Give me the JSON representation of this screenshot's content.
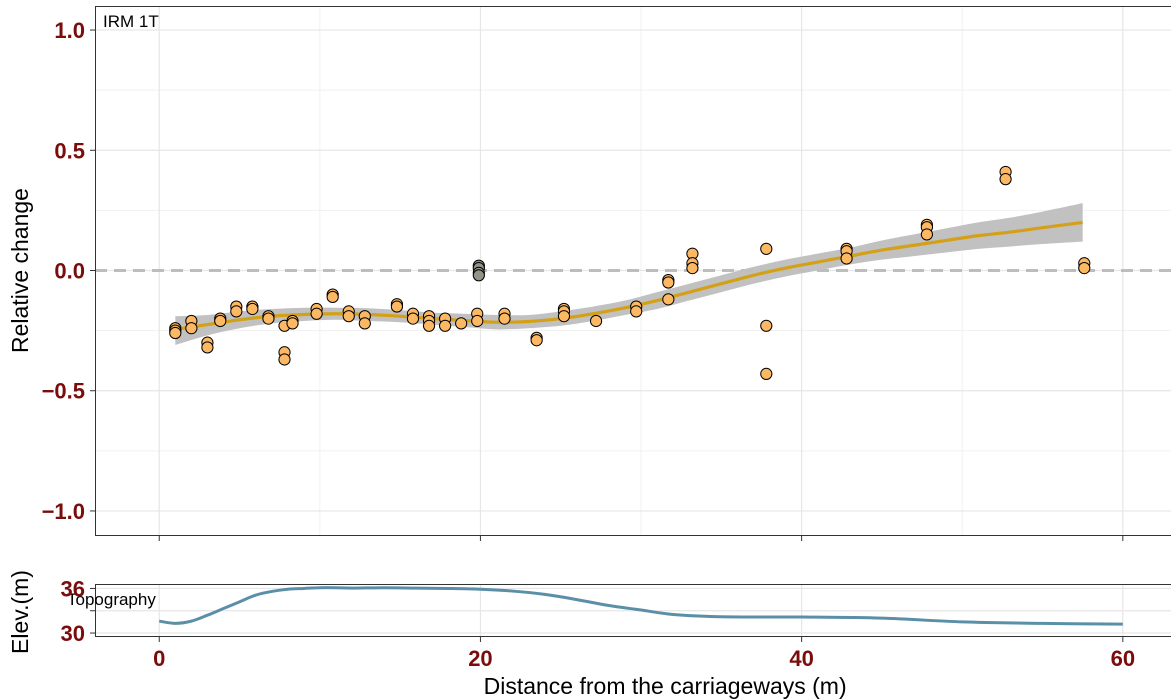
{
  "chart_data": [
    {
      "type": "scatter",
      "panel_label": "IRM 1T",
      "xlabel": "Distance from the carriageways (m)",
      "ylabel": "Relative change",
      "xlim": [
        -4,
        63
      ],
      "ylim": [
        -1.1,
        1.1
      ],
      "x_ticks": [
        0,
        20,
        40,
        60
      ],
      "x_tick_labels": [
        "0",
        "20",
        "40",
        "60"
      ],
      "y_ticks": [
        -1.0,
        -0.5,
        0.0,
        0.5,
        1.0
      ],
      "y_tick_labels": [
        "−1.0",
        "−0.5",
        "0.0",
        "0.5",
        "1.0"
      ],
      "grid": true,
      "reference_line": {
        "y": 0.0,
        "style": "dashed",
        "color": "#bdbdbd"
      },
      "colors": {
        "points": "#FDB863",
        "points_outlier": "#8f9688",
        "smooth": "#D4A017",
        "band": "#bebebe",
        "tick_labels": "#7a0c0c"
      },
      "points": [
        {
          "x": 1.0,
          "y": -0.24
        },
        {
          "x": 1.0,
          "y": -0.25
        },
        {
          "x": 1.0,
          "y": -0.26
        },
        {
          "x": 2.0,
          "y": -0.21
        },
        {
          "x": 2.0,
          "y": -0.24
        },
        {
          "x": 3.0,
          "y": -0.3
        },
        {
          "x": 3.0,
          "y": -0.32
        },
        {
          "x": 3.8,
          "y": -0.2
        },
        {
          "x": 3.8,
          "y": -0.21
        },
        {
          "x": 4.8,
          "y": -0.15
        },
        {
          "x": 4.8,
          "y": -0.17
        },
        {
          "x": 5.8,
          "y": -0.15
        },
        {
          "x": 5.8,
          "y": -0.16
        },
        {
          "x": 6.8,
          "y": -0.19
        },
        {
          "x": 6.8,
          "y": -0.2
        },
        {
          "x": 7.8,
          "y": -0.23
        },
        {
          "x": 7.8,
          "y": -0.34
        },
        {
          "x": 7.8,
          "y": -0.37
        },
        {
          "x": 8.3,
          "y": -0.21
        },
        {
          "x": 8.3,
          "y": -0.22
        },
        {
          "x": 9.8,
          "y": -0.16
        },
        {
          "x": 9.8,
          "y": -0.18
        },
        {
          "x": 10.8,
          "y": -0.1
        },
        {
          "x": 10.8,
          "y": -0.11
        },
        {
          "x": 11.8,
          "y": -0.17
        },
        {
          "x": 11.8,
          "y": -0.19
        },
        {
          "x": 12.8,
          "y": -0.19
        },
        {
          "x": 12.8,
          "y": -0.22
        },
        {
          "x": 14.8,
          "y": -0.14
        },
        {
          "x": 14.8,
          "y": -0.15
        },
        {
          "x": 15.8,
          "y": -0.18
        },
        {
          "x": 15.8,
          "y": -0.2
        },
        {
          "x": 16.8,
          "y": -0.19
        },
        {
          "x": 16.8,
          "y": -0.21
        },
        {
          "x": 16.8,
          "y": -0.23
        },
        {
          "x": 17.8,
          "y": -0.2
        },
        {
          "x": 17.8,
          "y": -0.23
        },
        {
          "x": 18.8,
          "y": -0.22
        },
        {
          "x": 19.8,
          "y": -0.18
        },
        {
          "x": 19.8,
          "y": -0.21
        },
        {
          "x": 21.5,
          "y": -0.18
        },
        {
          "x": 21.5,
          "y": -0.2
        },
        {
          "x": 23.5,
          "y": -0.28
        },
        {
          "x": 23.5,
          "y": -0.29
        },
        {
          "x": 25.2,
          "y": -0.16
        },
        {
          "x": 25.2,
          "y": -0.17
        },
        {
          "x": 25.2,
          "y": -0.19
        },
        {
          "x": 27.2,
          "y": -0.21
        },
        {
          "x": 29.7,
          "y": -0.15
        },
        {
          "x": 29.7,
          "y": -0.17
        },
        {
          "x": 31.7,
          "y": -0.04
        },
        {
          "x": 31.7,
          "y": -0.05
        },
        {
          "x": 31.7,
          "y": -0.12
        },
        {
          "x": 33.2,
          "y": 0.07
        },
        {
          "x": 33.2,
          "y": 0.03
        },
        {
          "x": 33.2,
          "y": 0.01
        },
        {
          "x": 37.8,
          "y": 0.09
        },
        {
          "x": 37.8,
          "y": -0.23
        },
        {
          "x": 37.8,
          "y": -0.43
        },
        {
          "x": 42.8,
          "y": 0.09
        },
        {
          "x": 42.8,
          "y": 0.08
        },
        {
          "x": 42.8,
          "y": 0.05
        },
        {
          "x": 47.8,
          "y": 0.19
        },
        {
          "x": 47.8,
          "y": 0.18
        },
        {
          "x": 47.8,
          "y": 0.15
        },
        {
          "x": 52.7,
          "y": 0.41
        },
        {
          "x": 52.7,
          "y": 0.38
        },
        {
          "x": 57.6,
          "y": 0.03
        },
        {
          "x": 57.6,
          "y": 0.01
        }
      ],
      "outlier_points": [
        {
          "x": 19.9,
          "y": 0.02
        },
        {
          "x": 19.9,
          "y": 0.01
        },
        {
          "x": 19.9,
          "y": -0.01
        },
        {
          "x": 19.9,
          "y": -0.02
        }
      ],
      "smooth_line": [
        {
          "x": 1,
          "y": -0.245
        },
        {
          "x": 3,
          "y": -0.225
        },
        {
          "x": 5,
          "y": -0.205
        },
        {
          "x": 7,
          "y": -0.19
        },
        {
          "x": 9,
          "y": -0.183
        },
        {
          "x": 11,
          "y": -0.18
        },
        {
          "x": 13,
          "y": -0.183
        },
        {
          "x": 15,
          "y": -0.19
        },
        {
          "x": 17,
          "y": -0.2
        },
        {
          "x": 19,
          "y": -0.208
        },
        {
          "x": 21,
          "y": -0.215
        },
        {
          "x": 23,
          "y": -0.212
        },
        {
          "x": 25,
          "y": -0.2
        },
        {
          "x": 27,
          "y": -0.18
        },
        {
          "x": 29,
          "y": -0.155
        },
        {
          "x": 31,
          "y": -0.125
        },
        {
          "x": 33,
          "y": -0.09
        },
        {
          "x": 35,
          "y": -0.055
        },
        {
          "x": 37,
          "y": -0.02
        },
        {
          "x": 39,
          "y": 0.01
        },
        {
          "x": 41,
          "y": 0.035
        },
        {
          "x": 43,
          "y": 0.06
        },
        {
          "x": 45,
          "y": 0.085
        },
        {
          "x": 47,
          "y": 0.105
        },
        {
          "x": 49,
          "y": 0.125
        },
        {
          "x": 51,
          "y": 0.145
        },
        {
          "x": 53,
          "y": 0.16
        },
        {
          "x": 55,
          "y": 0.178
        },
        {
          "x": 57.5,
          "y": 0.2
        }
      ],
      "confidence_band": [
        {
          "x": 1,
          "lo": -0.31,
          "hi": -0.19
        },
        {
          "x": 3,
          "lo": -0.27,
          "hi": -0.185
        },
        {
          "x": 5,
          "lo": -0.24,
          "hi": -0.17
        },
        {
          "x": 7,
          "lo": -0.22,
          "hi": -0.16
        },
        {
          "x": 9,
          "lo": -0.21,
          "hi": -0.155
        },
        {
          "x": 11,
          "lo": -0.205,
          "hi": -0.155
        },
        {
          "x": 13,
          "lo": -0.21,
          "hi": -0.157
        },
        {
          "x": 15,
          "lo": -0.215,
          "hi": -0.165
        },
        {
          "x": 17,
          "lo": -0.225,
          "hi": -0.175
        },
        {
          "x": 19,
          "lo": -0.235,
          "hi": -0.18
        },
        {
          "x": 21,
          "lo": -0.245,
          "hi": -0.185
        },
        {
          "x": 23,
          "lo": -0.24,
          "hi": -0.185
        },
        {
          "x": 25,
          "lo": -0.23,
          "hi": -0.17
        },
        {
          "x": 27,
          "lo": -0.21,
          "hi": -0.15
        },
        {
          "x": 29,
          "lo": -0.185,
          "hi": -0.125
        },
        {
          "x": 31,
          "lo": -0.16,
          "hi": -0.09
        },
        {
          "x": 33,
          "lo": -0.125,
          "hi": -0.055
        },
        {
          "x": 35,
          "lo": -0.09,
          "hi": -0.02
        },
        {
          "x": 37,
          "lo": -0.055,
          "hi": 0.015
        },
        {
          "x": 39,
          "lo": -0.025,
          "hi": 0.045
        },
        {
          "x": 41,
          "lo": 0.0,
          "hi": 0.07
        },
        {
          "x": 43,
          "lo": 0.025,
          "hi": 0.095
        },
        {
          "x": 45,
          "lo": 0.045,
          "hi": 0.125
        },
        {
          "x": 47,
          "lo": 0.06,
          "hi": 0.15
        },
        {
          "x": 49,
          "lo": 0.075,
          "hi": 0.175
        },
        {
          "x": 51,
          "lo": 0.09,
          "hi": 0.2
        },
        {
          "x": 53,
          "lo": 0.1,
          "hi": 0.22
        },
        {
          "x": 55,
          "lo": 0.11,
          "hi": 0.245
        },
        {
          "x": 57.5,
          "lo": 0.12,
          "hi": 0.28
        }
      ]
    },
    {
      "type": "line",
      "panel_label": "Topography",
      "xlabel": "Distance from the carriageways (m)",
      "ylabel": "Elev.(m)",
      "xlim": [
        -4,
        63
      ],
      "ylim": [
        29.6,
        36.6
      ],
      "y_ticks": [
        30,
        33,
        36
      ],
      "y_tick_labels": [
        "30",
        "",
        "36"
      ],
      "color": "#5B8FA8",
      "series": [
        {
          "x": [
            0,
            1,
            2,
            3,
            4,
            5,
            6,
            7,
            8,
            9,
            10,
            11,
            12,
            14,
            16,
            18,
            20,
            22,
            24,
            26,
            28,
            30,
            32,
            35,
            40,
            45,
            50,
            55,
            60
          ],
          "values": [
            31.6,
            31.3,
            31.6,
            32.4,
            33.3,
            34.2,
            35.1,
            35.6,
            35.9,
            36.0,
            36.1,
            36.1,
            36.05,
            36.1,
            36.05,
            36.0,
            35.9,
            35.65,
            35.2,
            34.5,
            33.7,
            33.1,
            32.5,
            32.2,
            32.15,
            32.0,
            31.5,
            31.3,
            31.2
          ]
        }
      ]
    }
  ]
}
